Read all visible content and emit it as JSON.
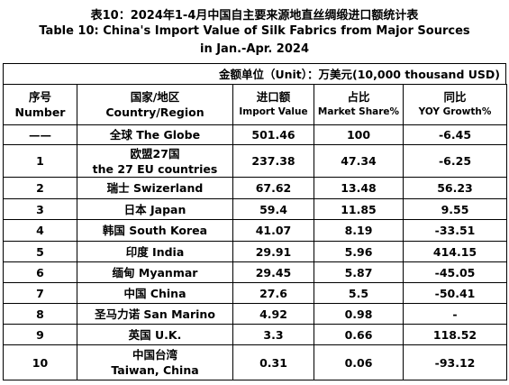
{
  "title": [
    "表10：2024年1-4月中国自主要来源地直丝绸缎进口额统计表",
    "Table 10: China's Import Value of Silk Fabrics from Major Sources",
    "in Jan.-Apr. 2024"
  ],
  "unit": "金额单位（Unit）：万美元(10,000 thousand USD)",
  "table": {
    "header": [
      [
        "序号",
        "Number"
      ],
      [
        "国家/地区",
        "Country/Region"
      ],
      [
        "进口额",
        "Import Value"
      ],
      [
        "占比",
        "Market Share%"
      ],
      [
        "同比",
        "YOY Growth%"
      ]
    ],
    "rows": [
      [
        "——",
        [
          "全球 The Globe"
        ],
        501.46,
        100,
        -6.45
      ],
      [
        1,
        [
          "欧盟27国",
          "the 27 EU countries"
        ],
        237.38,
        47.34,
        -6.25
      ],
      [
        2,
        [
          "瑞士 Swizerland"
        ],
        67.62,
        13.48,
        56.23
      ],
      [
        3,
        [
          "日本 Japan"
        ],
        59.4,
        11.85,
        9.55
      ],
      [
        4,
        [
          "韩国 South Korea"
        ],
        41.07,
        8.19,
        -33.51
      ],
      [
        5,
        [
          "印度 India"
        ],
        29.91,
        5.96,
        414.15
      ],
      [
        6,
        [
          "缅甸 Myanmar"
        ],
        29.45,
        5.87,
        -45.05
      ],
      [
        7,
        [
          "中国 China"
        ],
        27.6,
        5.5,
        -50.41
      ],
      [
        8,
        [
          "圣马力诺  San Marino"
        ],
        4.92,
        0.98,
        "-"
      ],
      [
        9,
        [
          "英国 U.K."
        ],
        3.3,
        0.66,
        118.52
      ],
      [
        10,
        [
          "中国台湾",
          "Taiwan, China"
        ],
        0.31,
        0.06,
        -93.12
      ]
    ]
  }
}
